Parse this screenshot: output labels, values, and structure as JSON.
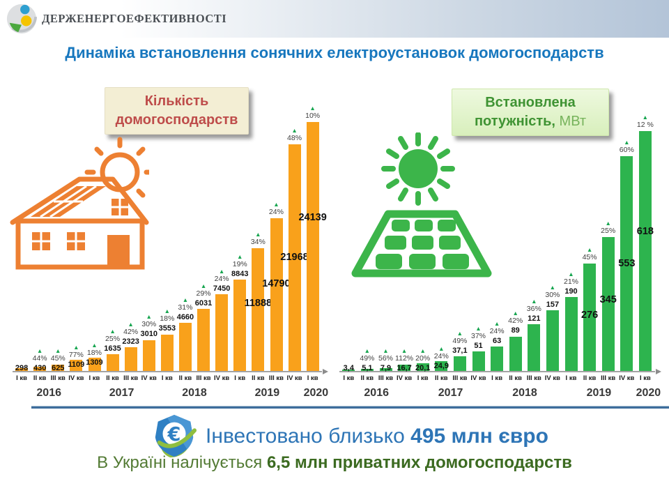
{
  "header": {
    "org_name": "ДЕРЖЕНЕРГОЕФЕКТИВНОСТІ",
    "logo_icon": "sphere-globe-icon"
  },
  "title": "Динаміка встановлення сонячних електроустановок домогосподарств",
  "chart_data": [
    {
      "type": "bar",
      "title": "Кількість домогосподарств",
      "bar_color": "#F9A11B",
      "ylim": [
        0,
        24139
      ],
      "grid": false,
      "categories": [
        "I кв",
        "II кв",
        "III кв",
        "IV кв",
        "I кв",
        "II кв",
        "III кв",
        "IV кв",
        "I кв",
        "II кв",
        "III кв",
        "IV кв",
        "I кв",
        "II кв",
        "III кв",
        "IV кв",
        "I кв"
      ],
      "years": [
        {
          "label": "2016",
          "span": 4
        },
        {
          "label": "2017",
          "span": 4
        },
        {
          "label": "2018",
          "span": 4
        },
        {
          "label": "2019",
          "span": 4
        },
        {
          "label": "2020",
          "span": 1
        }
      ],
      "values": [
        298,
        430,
        625,
        1109,
        1309,
        1635,
        2323,
        3010,
        3553,
        4660,
        6031,
        7450,
        8843,
        11888,
        14790,
        21968,
        24139
      ],
      "value_labels": [
        "298",
        "430",
        "625",
        "1109",
        "1309",
        "1635",
        "2323",
        "3010",
        "3553",
        "4660",
        "6031",
        "7450",
        "8843",
        "11888",
        "14790",
        "21968",
        "24139"
      ],
      "growth_pct": [
        null,
        "44%",
        "45%",
        "77%",
        "18%",
        "25%",
        "42%",
        "30%",
        "18%",
        "31%",
        "29%",
        "24%",
        "19%",
        "34%",
        "24%",
        "48%",
        "10%"
      ],
      "icon": "house-solar-icon"
    },
    {
      "type": "bar",
      "title": "Встановлена потужність, МВт",
      "title_bold": "Встановлена потужність,",
      "title_unit": " МВт",
      "bar_color": "#2DB44E",
      "ylim": [
        0,
        618
      ],
      "grid": false,
      "categories": [
        "I кв",
        "II кв",
        "III кв",
        "IV кв",
        "I кв",
        "II кв",
        "III кв",
        "IV кв",
        "I кв",
        "II кв",
        "III кв",
        "IV кв",
        "I кв",
        "II кв",
        "III кв",
        "IV кв",
        "I кв"
      ],
      "years": [
        {
          "label": "2016",
          "span": 4
        },
        {
          "label": "2017",
          "span": 4
        },
        {
          "label": "2018",
          "span": 4
        },
        {
          "label": "2019",
          "span": 4
        },
        {
          "label": "2020",
          "span": 1
        }
      ],
      "values": [
        3.4,
        5.1,
        7.9,
        16.7,
        20.1,
        24.9,
        37.1,
        51,
        63,
        89,
        121,
        157,
        190,
        276,
        345,
        553,
        618
      ],
      "value_labels": [
        "3,4",
        "5,1",
        "7,9",
        "16,7",
        "20,1",
        "24,9",
        "37,1",
        "51",
        "63",
        "89",
        "121",
        "157",
        "190",
        "276",
        "345",
        "553",
        "618"
      ],
      "growth_pct": [
        null,
        "49%",
        "56%",
        "112%",
        "20%",
        "24%",
        "49%",
        "37%",
        "24%",
        "42%",
        "36%",
        "30%",
        "21%",
        "45%",
        "25%",
        "60%",
        "12 %"
      ],
      "icons": [
        "sun-icon",
        "solar-panel-icon"
      ]
    }
  ],
  "footer": {
    "invested_prefix": "Інвестовано близько ",
    "invested_amount": "495 млн євро",
    "households_prefix": "В Україні налічується ",
    "households_amount": "6,5 млн приватних домогосподарств",
    "icon": "euro-shield-icon"
  },
  "colors": {
    "title_blue": "#1777BE",
    "bar_orange": "#F9A11B",
    "bar_green": "#2DB44E",
    "growth_triangle": "#17A550",
    "left_box_text": "#BE4C4A",
    "right_box_text": "#3F9333",
    "footer_blue": "#2E75B6",
    "footer_green": "#527A33",
    "divider": "#3E6D9C"
  }
}
